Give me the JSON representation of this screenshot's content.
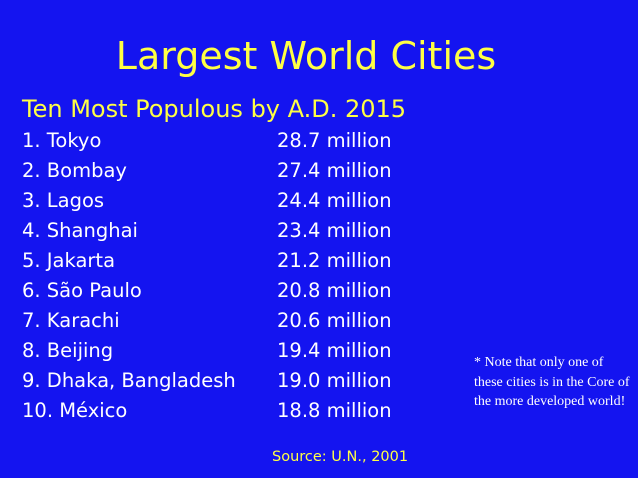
{
  "slide": {
    "title": "Largest World Cities",
    "subtitle": "Ten Most Populous by A.D. 2015",
    "cities": [
      {
        "name": "1. Tokyo",
        "population": "28.7 million"
      },
      {
        "name": "2. Bombay",
        "population": "27.4 million"
      },
      {
        "name": "3. Lagos",
        "population": "24.4 million"
      },
      {
        "name": "4. Shanghai",
        "population": "23.4 million"
      },
      {
        "name": "5. Jakarta",
        "population": "21.2 million"
      },
      {
        "name": "6. São Paulo",
        "population": "20.8 million"
      },
      {
        "name": "7. Karachi",
        "population": "20.6 million"
      },
      {
        "name": "8. Beijing",
        "population": "19.4 million"
      },
      {
        "name": "9. Dhaka, Bangladesh",
        "population": "19.0 million"
      },
      {
        "name": "10. México",
        "population": "18.8 million"
      }
    ],
    "note": "* Note that only one of these cities is in the Core of the more developed world!",
    "source": "Source: U.N., 2001"
  },
  "colors": {
    "background": "#1414f0",
    "heading": "#ffff44",
    "body_text": "#ffffff"
  }
}
